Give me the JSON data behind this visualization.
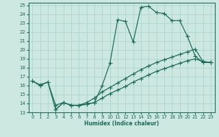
{
  "xlabel": "Humidex (Indice chaleur)",
  "xlim": [
    -0.5,
    23.5
  ],
  "ylim": [
    13,
    25.3
  ],
  "xticks": [
    0,
    1,
    2,
    3,
    4,
    5,
    6,
    7,
    8,
    9,
    10,
    11,
    12,
    13,
    14,
    15,
    16,
    17,
    18,
    19,
    20,
    21,
    22,
    23
  ],
  "yticks": [
    13,
    14,
    15,
    16,
    17,
    18,
    19,
    20,
    21,
    22,
    23,
    24,
    25
  ],
  "bg_color": "#cce8e0",
  "grid_color": "#b0d8ce",
  "line_color": "#1a6b5a",
  "line1_x": [
    0,
    1,
    2,
    3,
    4,
    5,
    6,
    7,
    8,
    9,
    10,
    11,
    12,
    13,
    14,
    15,
    16,
    17,
    18,
    19,
    20,
    21,
    22,
    23
  ],
  "line1_y": [
    16.5,
    16.0,
    16.4,
    13.8,
    14.1,
    13.8,
    13.8,
    13.9,
    14.1,
    16.0,
    18.5,
    23.4,
    23.2,
    20.9,
    24.8,
    24.9,
    24.2,
    24.1,
    23.3,
    23.3,
    21.5,
    19.3,
    18.6,
    18.6
  ],
  "line2_x": [
    0,
    1,
    2,
    3,
    4,
    5,
    6,
    7,
    8,
    9,
    10,
    11,
    12,
    13,
    14,
    15,
    16,
    17,
    18,
    19,
    20,
    21,
    22,
    23
  ],
  "line2_y": [
    16.5,
    16.1,
    16.4,
    13.3,
    14.1,
    13.8,
    13.8,
    14.1,
    14.6,
    15.3,
    15.8,
    16.3,
    16.8,
    17.3,
    17.8,
    18.2,
    18.6,
    18.9,
    19.2,
    19.5,
    19.8,
    20.1,
    18.7,
    18.6
  ],
  "line3_x": [
    3,
    4,
    5,
    6,
    7,
    8,
    9,
    10,
    11,
    12,
    13,
    14,
    15,
    16,
    17,
    18,
    19,
    20,
    21,
    22,
    23
  ],
  "line3_y": [
    13.3,
    14.1,
    13.8,
    13.8,
    13.9,
    14.1,
    14.6,
    15.1,
    15.5,
    15.9,
    16.4,
    16.8,
    17.2,
    17.6,
    17.9,
    18.2,
    18.5,
    18.8,
    19.0,
    18.7,
    18.6
  ]
}
